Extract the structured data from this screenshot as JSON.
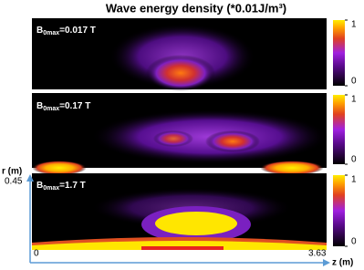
{
  "title": "Wave energy density (*0.01J/m³)",
  "panels": [
    {
      "label_main": "B",
      "label_sub": "0max",
      "label_rest": "=0.017 T",
      "colorbar_lim": [
        0,
        1
      ],
      "colorbar_ticks": [
        0,
        1
      ]
    },
    {
      "label_main": "B",
      "label_sub": "0max",
      "label_rest": "=0.17 T",
      "colorbar_lim": [
        0,
        1
      ],
      "colorbar_ticks": [
        0,
        1
      ]
    },
    {
      "label_main": "B",
      "label_sub": "0max",
      "label_rest": "=1.7 T",
      "colorbar_lim": [
        0,
        1
      ],
      "colorbar_ticks": [
        0,
        1
      ]
    }
  ],
  "axes": {
    "r_label": "r (m)",
    "r_max": 0.45,
    "z_label": "z (m)",
    "z_min": 0,
    "z_max": 3.63
  }
}
